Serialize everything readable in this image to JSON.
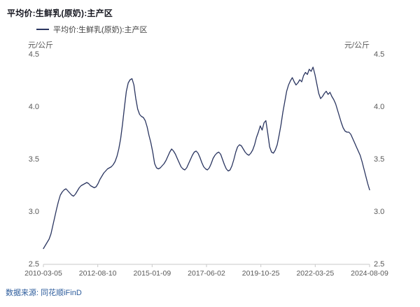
{
  "title": "平均价:生鲜乳(原奶):主产区",
  "legend": {
    "label": "平均价:生鲜乳(原奶):主产区"
  },
  "unit_left": "元/公斤",
  "unit_right": "元/公斤",
  "source": "数据来源: 同花顺iFinD",
  "colors": {
    "line": "#2a3560",
    "axis_line": "#c9c9c9",
    "axis_text": "#595959",
    "title_text": "#15161f",
    "source_text": "#2d5c9c"
  },
  "chart_data": {
    "type": "line",
    "title": "平均价:生鲜乳(原奶):主产区",
    "series_name": "平均价:生鲜乳(原奶):主产区",
    "ylabel": "元/公斤",
    "ylim": [
      2.5,
      4.5
    ],
    "y_ticks": [
      2.5,
      3.0,
      3.5,
      4.0,
      4.5
    ],
    "x_tick_labels": [
      "2010-03-05",
      "2012-08-10",
      "2015-01-09",
      "2017-06-02",
      "2019-10-25",
      "2022-03-25",
      "2024-08-09"
    ],
    "x_start": "2010-03-05",
    "x_end": "2024-08-09",
    "grid": false,
    "legend_position": "top-left",
    "values": [
      2.65,
      2.68,
      2.71,
      2.74,
      2.79,
      2.87,
      2.95,
      3.03,
      3.1,
      3.16,
      3.19,
      3.21,
      3.22,
      3.2,
      3.18,
      3.16,
      3.15,
      3.17,
      3.2,
      3.23,
      3.25,
      3.26,
      3.27,
      3.28,
      3.27,
      3.25,
      3.24,
      3.23,
      3.24,
      3.27,
      3.31,
      3.34,
      3.37,
      3.39,
      3.41,
      3.42,
      3.43,
      3.45,
      3.48,
      3.53,
      3.6,
      3.7,
      3.84,
      4.0,
      4.15,
      4.23,
      4.26,
      4.27,
      4.21,
      4.08,
      3.98,
      3.93,
      3.91,
      3.9,
      3.87,
      3.81,
      3.73,
      3.66,
      3.57,
      3.46,
      3.42,
      3.41,
      3.42,
      3.44,
      3.46,
      3.49,
      3.53,
      3.57,
      3.6,
      3.58,
      3.55,
      3.51,
      3.47,
      3.43,
      3.41,
      3.4,
      3.42,
      3.46,
      3.5,
      3.54,
      3.57,
      3.58,
      3.56,
      3.52,
      3.47,
      3.43,
      3.41,
      3.4,
      3.42,
      3.46,
      3.51,
      3.54,
      3.56,
      3.57,
      3.55,
      3.5,
      3.45,
      3.41,
      3.39,
      3.4,
      3.44,
      3.5,
      3.57,
      3.62,
      3.64,
      3.63,
      3.6,
      3.57,
      3.55,
      3.54,
      3.56,
      3.59,
      3.64,
      3.71,
      3.76,
      3.82,
      3.78,
      3.85,
      3.87,
      3.75,
      3.62,
      3.57,
      3.56,
      3.59,
      3.64,
      3.73,
      3.83,
      3.95,
      4.05,
      4.15,
      4.21,
      4.25,
      4.28,
      4.24,
      4.21,
      4.23,
      4.26,
      4.24,
      4.3,
      4.33,
      4.31,
      4.36,
      4.34,
      4.38,
      4.31,
      4.22,
      4.13,
      4.08,
      4.1,
      4.13,
      4.15,
      4.12,
      4.14,
      4.1,
      4.07,
      4.03,
      3.97,
      3.91,
      3.85,
      3.8,
      3.77,
      3.76,
      3.76,
      3.74,
      3.7,
      3.66,
      3.62,
      3.58,
      3.54,
      3.48,
      3.41,
      3.34,
      3.27,
      3.21
    ]
  }
}
